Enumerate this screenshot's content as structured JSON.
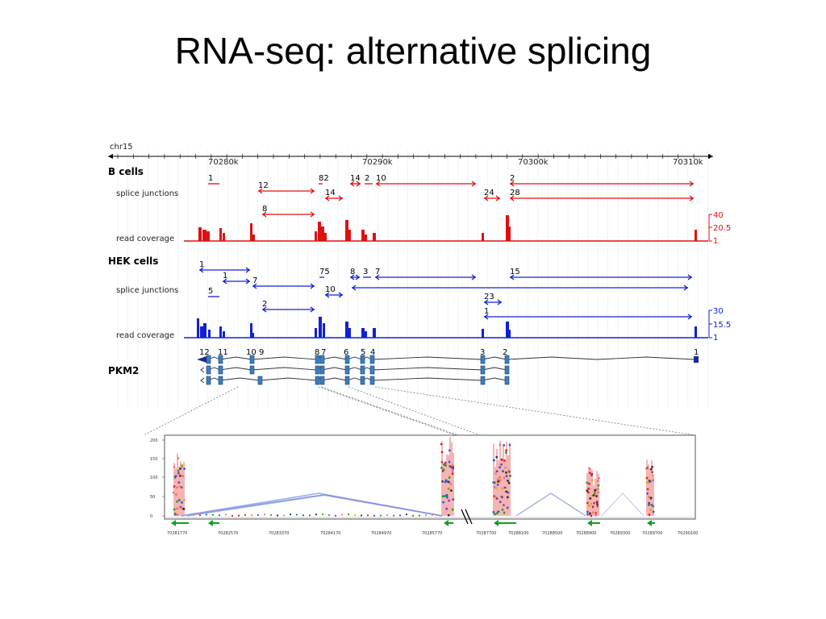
{
  "title": "RNA-seq: alternative splicing",
  "colors": {
    "b_cells": "#e01010",
    "hek_cells": "#1020d8",
    "exon": "#3a7fc0",
    "arrow_green": "#10a020"
  },
  "chromosome": "chr15",
  "positions": [
    "70280k",
    "70290k",
    "70300k",
    "70310k"
  ],
  "b_cells": {
    "label": "B cells",
    "sj_label": "splice junctions",
    "rc_label": "read coverage",
    "scale": [
      "40",
      "20.5",
      "1"
    ],
    "junctions": [
      {
        "label": "1",
        "x1": 258,
        "x2": 272,
        "y": 228,
        "ah": false
      },
      {
        "label": "12",
        "x1": 320,
        "x2": 390,
        "y": 237,
        "ah": true
      },
      {
        "label": "8",
        "x1": 325,
        "x2": 390,
        "y": 266,
        "ah": true
      },
      {
        "label": "82",
        "x1": 395,
        "x2": 400,
        "y": 228,
        "ah": false
      },
      {
        "label": "14",
        "x1": 403,
        "x2": 425,
        "y": 246,
        "ah": true
      },
      {
        "label": "14",
        "x1": 434,
        "x2": 447,
        "y": 228,
        "ah": true
      },
      {
        "label": "2",
        "x1": 452,
        "x2": 462,
        "y": 228,
        "ah": false
      },
      {
        "label": "10",
        "x1": 466,
        "x2": 590,
        "y": 228,
        "ah": true
      },
      {
        "label": "24",
        "x1": 600,
        "x2": 620,
        "y": 246,
        "ah": true
      },
      {
        "label": "2",
        "x1": 632,
        "x2": 860,
        "y": 228,
        "ah": true
      },
      {
        "label": "28",
        "x1": 632,
        "x2": 860,
        "y": 246,
        "ah": true
      }
    ]
  },
  "hek_cells": {
    "label": "HEK cells",
    "sj_label": "splice junctions",
    "rc_label": "read coverage",
    "scale": [
      "30",
      "15.5",
      "1"
    ],
    "junctions": [
      {
        "label": "1",
        "x1": 247,
        "x2": 310,
        "y": 335,
        "ah": true
      },
      {
        "label": "1",
        "x1": 276,
        "x2": 310,
        "y": 349,
        "ah": true
      },
      {
        "label": "7",
        "x1": 313,
        "x2": 390,
        "y": 355,
        "ah": true
      },
      {
        "label": "5",
        "x1": 258,
        "x2": 272,
        "y": 368,
        "ah": false
      },
      {
        "label": "2",
        "x1": 325,
        "x2": 390,
        "y": 384,
        "ah": true
      },
      {
        "label": "75",
        "x1": 396,
        "x2": 402,
        "y": 344,
        "ah": false
      },
      {
        "label": "10",
        "x1": 403,
        "x2": 425,
        "y": 366,
        "ah": true
      },
      {
        "label": "8",
        "x1": 434,
        "x2": 446,
        "y": 344,
        "ah": true
      },
      {
        "label": "3",
        "x1": 450,
        "x2": 460,
        "y": 344,
        "ah": false
      },
      {
        "label": "7",
        "x1": 465,
        "x2": 590,
        "y": 344,
        "ah": true
      },
      {
        "label": "",
        "x1": 436,
        "x2": 853,
        "y": 357,
        "ah": true
      },
      {
        "label": "15",
        "x1": 632,
        "x2": 858,
        "y": 344,
        "ah": true
      },
      {
        "label": "23",
        "x1": 600,
        "x2": 622,
        "y": 375,
        "ah": true
      },
      {
        "label": "1",
        "x1": 600,
        "x2": 858,
        "y": 393,
        "ah": true
      }
    ]
  },
  "gene": {
    "label": "PKM2",
    "exon_labels": [
      "12",
      "11",
      "10",
      "9",
      "8",
      "7",
      "6",
      "5",
      "4",
      "3",
      "2",
      "1"
    ]
  },
  "zoom": {
    "y_ticks": [
      "200",
      "150",
      "100",
      "50",
      "0"
    ],
    "x_ticks": [
      "70281770",
      "70282570",
      "70283370",
      "70284170",
      "70284970",
      "70285770",
      "70287700",
      "70288100",
      "70288500",
      "70288900",
      "70289300",
      "70289700",
      "70290100"
    ]
  }
}
